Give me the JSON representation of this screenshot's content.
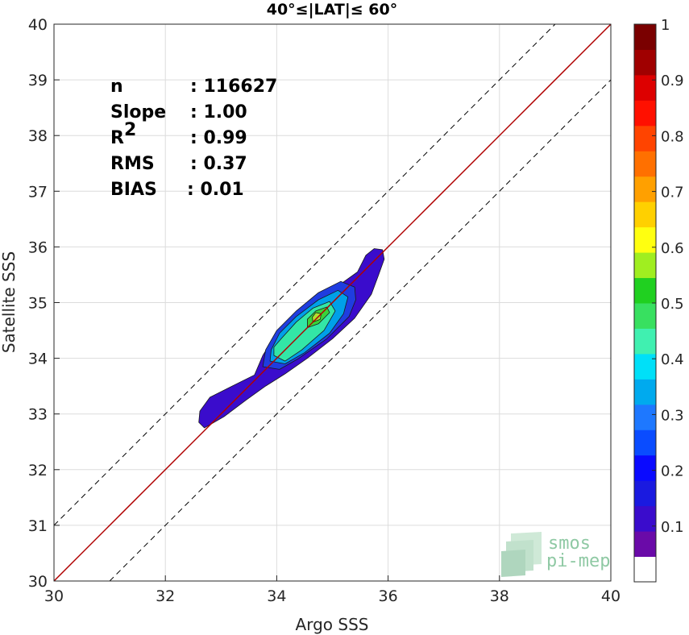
{
  "chart_data": {
    "type": "heatmap",
    "subtype": "density contour scatter",
    "title": "40°≤|LAT|≤ 60°",
    "xlabel": "Argo SSS",
    "ylabel": "Satellite SSS",
    "xlim": [
      30,
      40
    ],
    "ylim": [
      30,
      40
    ],
    "x_ticks": [
      "30",
      "32",
      "34",
      "36",
      "38",
      "40"
    ],
    "y_ticks": [
      "30",
      "31",
      "32",
      "33",
      "34",
      "35",
      "36",
      "37",
      "38",
      "39",
      "40"
    ],
    "grid": true,
    "reference_lines": [
      {
        "kind": "identity",
        "x": [
          30,
          40
        ],
        "y": [
          30,
          40
        ],
        "color": "#b00000",
        "style": "solid"
      },
      {
        "kind": "upper-offset",
        "x": [
          30,
          39
        ],
        "y": [
          31,
          40
        ],
        "color": "#000000",
        "style": "dashed"
      },
      {
        "kind": "lower-offset",
        "x": [
          31,
          40
        ],
        "y": [
          30,
          39
        ],
        "color": "#000000",
        "style": "dashed"
      }
    ],
    "stats": [
      {
        "label": "n",
        "value": ": 116627"
      },
      {
        "label": "Slope",
        "value": ": 1.00"
      },
      {
        "label": "R",
        "sup": "2",
        "value": ": 0.99"
      },
      {
        "label": "RMS",
        "value": ": 0.37"
      },
      {
        "label": "BIAS",
        "value": ": 0.01"
      }
    ],
    "contours": [
      {
        "level": 0.05,
        "color": "#3a0ccc",
        "points": [
          [
            32.7,
            32.75
          ],
          [
            33.05,
            32.95
          ],
          [
            33.45,
            33.25
          ],
          [
            33.8,
            33.5
          ],
          [
            34.15,
            33.72
          ],
          [
            34.55,
            34.0
          ],
          [
            35.0,
            34.35
          ],
          [
            35.4,
            34.72
          ],
          [
            35.7,
            35.15
          ],
          [
            35.83,
            35.5
          ],
          [
            35.93,
            35.78
          ],
          [
            35.9,
            35.95
          ],
          [
            35.75,
            35.97
          ],
          [
            35.6,
            35.85
          ],
          [
            35.45,
            35.55
          ],
          [
            35.1,
            35.3
          ],
          [
            34.7,
            35.08
          ],
          [
            34.3,
            34.78
          ],
          [
            34.0,
            34.45
          ],
          [
            33.75,
            34.05
          ],
          [
            33.6,
            33.7
          ],
          [
            33.2,
            33.5
          ],
          [
            32.8,
            33.3
          ],
          [
            32.62,
            33.05
          ],
          [
            32.6,
            32.85
          ]
        ]
      },
      {
        "level": 0.2,
        "color": "#1f3de0",
        "points": [
          [
            33.75,
            33.85
          ],
          [
            34.05,
            33.8
          ],
          [
            34.4,
            34.0
          ],
          [
            34.9,
            34.35
          ],
          [
            35.3,
            34.75
          ],
          [
            35.42,
            35.05
          ],
          [
            35.4,
            35.28
          ],
          [
            35.15,
            35.38
          ],
          [
            34.75,
            35.18
          ],
          [
            34.35,
            34.85
          ],
          [
            34.0,
            34.5
          ],
          [
            33.8,
            34.15
          ]
        ]
      },
      {
        "level": 0.3,
        "color": "#00a0e8",
        "points": [
          [
            33.88,
            33.95
          ],
          [
            34.15,
            33.9
          ],
          [
            34.5,
            34.1
          ],
          [
            34.95,
            34.45
          ],
          [
            35.2,
            34.8
          ],
          [
            35.28,
            35.1
          ],
          [
            35.1,
            35.22
          ],
          [
            34.75,
            35.05
          ],
          [
            34.35,
            34.75
          ],
          [
            34.05,
            34.45
          ],
          [
            33.9,
            34.15
          ]
        ]
      },
      {
        "level": 0.4,
        "color": "#33e6a6",
        "points": [
          [
            33.95,
            34.05
          ],
          [
            34.15,
            33.95
          ],
          [
            34.45,
            34.15
          ],
          [
            34.85,
            34.5
          ],
          [
            35.05,
            34.85
          ],
          [
            34.95,
            35.02
          ],
          [
            34.65,
            34.9
          ],
          [
            34.35,
            34.65
          ],
          [
            34.08,
            34.35
          ],
          [
            33.95,
            34.2
          ]
        ]
      },
      {
        "level": 0.5,
        "color": "#3ad23a",
        "points": [
          [
            34.55,
            34.55
          ],
          [
            34.75,
            34.62
          ],
          [
            34.95,
            34.82
          ],
          [
            34.9,
            34.92
          ],
          [
            34.7,
            34.85
          ],
          [
            34.55,
            34.7
          ]
        ]
      },
      {
        "level": 0.6,
        "color": "#b0e030",
        "points": [
          [
            34.65,
            34.65
          ],
          [
            34.78,
            34.7
          ],
          [
            34.8,
            34.8
          ],
          [
            34.7,
            34.82
          ],
          [
            34.64,
            34.74
          ]
        ]
      }
    ],
    "colorbar": {
      "ticks": [
        "0.1",
        "0.2",
        "0.3",
        "0.4",
        "0.5",
        "0.6",
        "0.7",
        "0.8",
        "0.9",
        "1"
      ],
      "colors": [
        "#ffffff",
        "#6a0aa8",
        "#3a0ccc",
        "#1a1ae0",
        "#0a0aff",
        "#0a4cff",
        "#1e78ff",
        "#00aaee",
        "#00e0f8",
        "#40f0b0",
        "#38e060",
        "#20d020",
        "#a0ee20",
        "#ffff10",
        "#ffd000",
        "#ffa000",
        "#ff7000",
        "#ff4400",
        "#ff1000",
        "#dd0000",
        "#a00000",
        "#7a0000"
      ]
    }
  },
  "logo": {
    "line1": "smos",
    "line2": "pi-mep"
  }
}
